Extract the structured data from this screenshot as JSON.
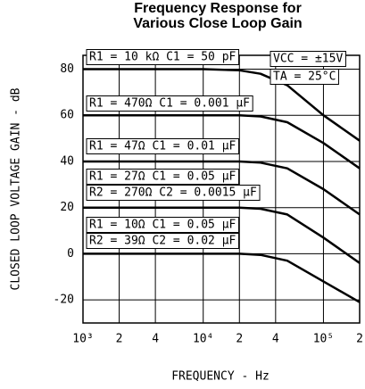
{
  "chart_data": {
    "type": "line",
    "title": [
      "Frequency Response for",
      "Various Close Loop Gain"
    ],
    "x_label": "FREQUENCY - Hz",
    "y_label": "CLOSED LOOP VOLTAGE GAIN - dB",
    "x": [
      1000,
      2000,
      5000,
      10000,
      20000,
      30000,
      50000,
      100000,
      200000
    ],
    "series": [
      {
        "name": "R1 = 10 kΩ C1 = 50 pF",
        "color": "#000000",
        "values": [
          80,
          80,
          80,
          80,
          79.5,
          78,
          73,
          60,
          49
        ]
      },
      {
        "name": "R1 = 470Ω C1 = 0.001 μF",
        "color": "#000000",
        "values": [
          60,
          60,
          60,
          60,
          60,
          59.5,
          57,
          48,
          37
        ]
      },
      {
        "name": "R1 = 47Ω C1 = 0.01 μF",
        "color": "#000000",
        "values": [
          40,
          40,
          40,
          40,
          40,
          39.5,
          37,
          28,
          17
        ]
      },
      {
        "name": "R1 = 27Ω C1 = 0.05 μF",
        "color": "#000000",
        "values": [
          20,
          20,
          20,
          20,
          20,
          19.5,
          17,
          7,
          -4
        ]
      },
      {
        "name": "R1 = 10Ω C1 = 0.05 μF",
        "color": "#000000",
        "values": [
          0,
          0,
          0,
          0,
          0,
          -0.5,
          -3,
          -12,
          -21
        ]
      }
    ],
    "annotations": [
      "R2 = 270Ω C2 = 0.0015 μF",
      "R2 = 39Ω C2 = 0.02 μF",
      "VCC = ±15V",
      "TA = 25°C"
    ],
    "xscale": "log",
    "xlim": [
      1000,
      200000
    ],
    "xticks": [
      {
        "value": 1000,
        "label": "10³"
      },
      {
        "value": 2000,
        "label": "2"
      },
      {
        "value": 4000,
        "label": "4"
      },
      {
        "value": 10000,
        "label": "10⁴"
      },
      {
        "value": 20000,
        "label": "2"
      },
      {
        "value": 40000,
        "label": "4"
      },
      {
        "value": 100000,
        "label": "10⁵"
      },
      {
        "value": 200000,
        "label": "2"
      }
    ],
    "ylim": [
      -30,
      86
    ],
    "yticks": [
      -20,
      0,
      20,
      40,
      60,
      80
    ],
    "grid": true
  }
}
